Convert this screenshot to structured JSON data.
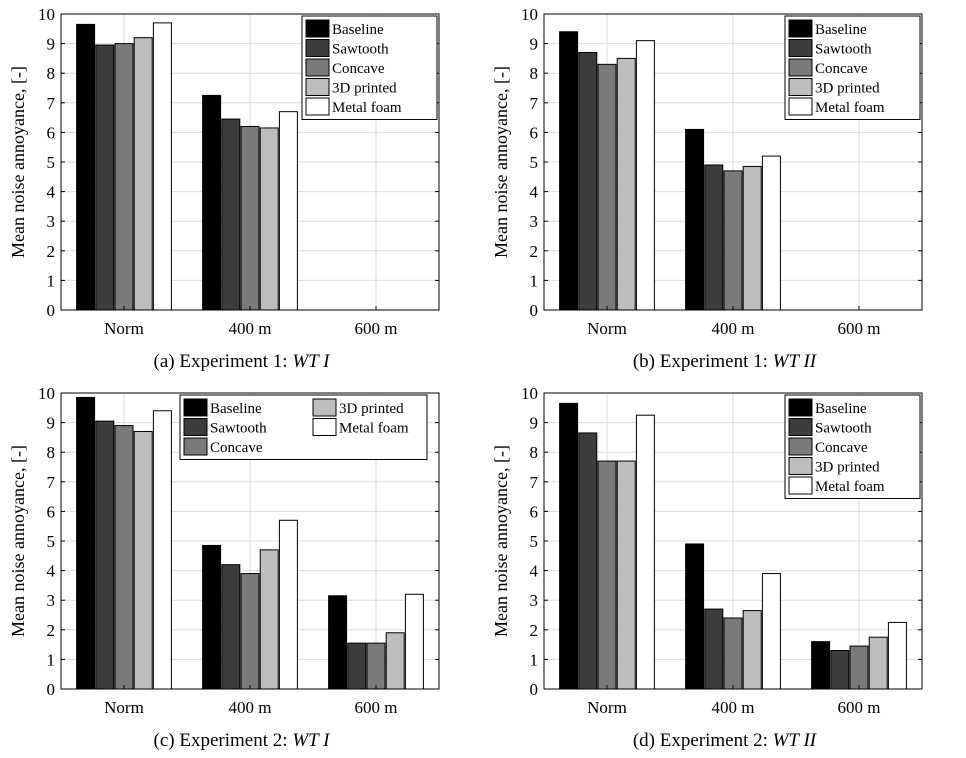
{
  "figure": {
    "legend_labels": [
      "Baseline",
      "Sawtooth",
      "Concave",
      "3D printed",
      "Metal foam"
    ],
    "colors": {
      "Baseline": "#000000",
      "Sawtooth": "#3c3c3c",
      "Concave": "#7a7a7a",
      "3D printed": "#bdbdbd",
      "Metal foam": "#ffffff"
    }
  },
  "chart_data": [
    {
      "type": "bar",
      "panel_label": "(a)",
      "caption": "(a) Experiment 1:",
      "caption_italic": "WT I",
      "ylabel": "Mean noise annoyance, [-]",
      "ylim": [
        0,
        10
      ],
      "yticks": [
        "0",
        "1",
        "2",
        "3",
        "4",
        "5",
        "6",
        "7",
        "8",
        "9",
        "10"
      ],
      "grid": true,
      "legend_placement": "top-right",
      "legend_layout": "single-column",
      "categories": [
        "Norm",
        "400 m",
        "600 m"
      ],
      "series": [
        {
          "name": "Baseline",
          "values": [
            9.65,
            7.25,
            0
          ]
        },
        {
          "name": "Sawtooth",
          "values": [
            8.95,
            6.45,
            0
          ]
        },
        {
          "name": "Concave",
          "values": [
            9.0,
            6.2,
            0
          ]
        },
        {
          "name": "3D printed",
          "values": [
            9.2,
            6.15,
            0
          ]
        },
        {
          "name": "Metal foam",
          "values": [
            9.7,
            6.7,
            0
          ]
        }
      ]
    },
    {
      "type": "bar",
      "panel_label": "(b)",
      "caption": "(b) Experiment 1:",
      "caption_italic": "WT II",
      "ylabel": "Mean noise annoyance, [-]",
      "ylim": [
        0,
        10
      ],
      "yticks": [
        "0",
        "1",
        "2",
        "3",
        "4",
        "5",
        "6",
        "7",
        "8",
        "9",
        "10"
      ],
      "grid": true,
      "legend_placement": "top-right",
      "legend_layout": "single-column",
      "categories": [
        "Norm",
        "400 m",
        "600 m"
      ],
      "series": [
        {
          "name": "Baseline",
          "values": [
            9.4,
            6.1,
            0
          ]
        },
        {
          "name": "Sawtooth",
          "values": [
            8.7,
            4.9,
            0
          ]
        },
        {
          "name": "Concave",
          "values": [
            8.3,
            4.7,
            0
          ]
        },
        {
          "name": "3D printed",
          "values": [
            8.5,
            4.85,
            0
          ]
        },
        {
          "name": "Metal foam",
          "values": [
            9.1,
            5.2,
            0
          ]
        }
      ]
    },
    {
      "type": "bar",
      "panel_label": "(c)",
      "caption": "(c) Experiment 2:",
      "caption_italic": "WT I",
      "ylabel": "Mean noise annoyance, [-]",
      "ylim": [
        0,
        10
      ],
      "yticks": [
        "0",
        "1",
        "2",
        "3",
        "4",
        "5",
        "6",
        "7",
        "8",
        "9",
        "10"
      ],
      "grid": true,
      "legend_placement": "top-right",
      "legend_layout": "two-column",
      "categories": [
        "Norm",
        "400 m",
        "600 m"
      ],
      "series": [
        {
          "name": "Baseline",
          "values": [
            9.85,
            4.85,
            3.15
          ]
        },
        {
          "name": "Sawtooth",
          "values": [
            9.05,
            4.2,
            1.55
          ]
        },
        {
          "name": "Concave",
          "values": [
            8.9,
            3.9,
            1.55
          ]
        },
        {
          "name": "3D printed",
          "values": [
            8.7,
            4.7,
            1.9
          ]
        },
        {
          "name": "Metal foam",
          "values": [
            9.4,
            5.7,
            3.2
          ]
        }
      ]
    },
    {
      "type": "bar",
      "panel_label": "(d)",
      "caption": "(d) Experiment 2:",
      "caption_italic": "WT II",
      "ylabel": "Mean noise annoyance, [-]",
      "ylim": [
        0,
        10
      ],
      "yticks": [
        "0",
        "1",
        "2",
        "3",
        "4",
        "5",
        "6",
        "7",
        "8",
        "9",
        "10"
      ],
      "grid": true,
      "legend_placement": "top-right",
      "legend_layout": "single-column",
      "categories": [
        "Norm",
        "400 m",
        "600 m"
      ],
      "series": [
        {
          "name": "Baseline",
          "values": [
            9.65,
            4.9,
            1.6
          ]
        },
        {
          "name": "Sawtooth",
          "values": [
            8.65,
            2.7,
            1.3
          ]
        },
        {
          "name": "Concave",
          "values": [
            7.7,
            2.4,
            1.45
          ]
        },
        {
          "name": "3D printed",
          "values": [
            7.7,
            2.65,
            1.75
          ]
        },
        {
          "name": "Metal foam",
          "values": [
            9.25,
            3.9,
            2.25
          ]
        }
      ]
    }
  ]
}
